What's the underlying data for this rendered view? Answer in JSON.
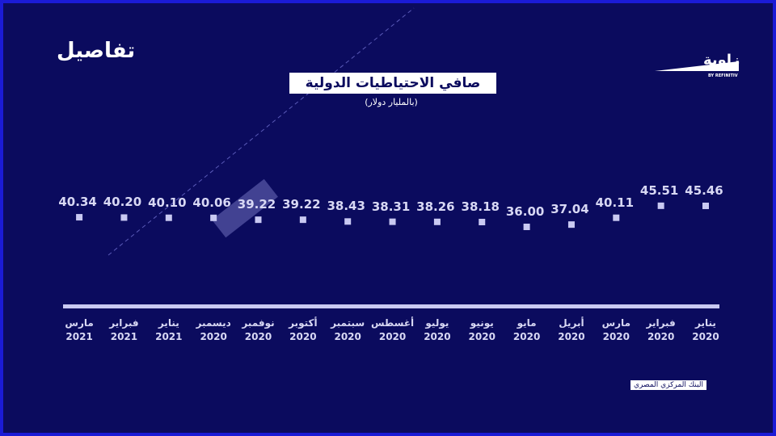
{
  "header": {
    "title": "تفاصيل",
    "logo": "زاوية",
    "logo_sub": "BY REFINITIV"
  },
  "chart_data": {
    "type": "line-markers",
    "title": "صافي الاحتياطيات الدولية",
    "subtitle": "(بالمليار دولار)",
    "categories": [
      "يناير\n2020",
      "فبراير\n2020",
      "مارس\n2020",
      "أبريل\n2020",
      "مايو\n2020",
      "يونيو\n2020",
      "يوليو\n2020",
      "أغسطس\n2020",
      "سبتمبر\n2020",
      "أكتوبر\n2020",
      "نوفمبر\n2020",
      "ديسمبر\n2020",
      "يناير\n2021",
      "فبراير\n2021",
      "مارس\n2021"
    ],
    "values": [
      45.46,
      45.51,
      40.11,
      37.04,
      36.0,
      38.18,
      38.26,
      38.31,
      38.43,
      39.22,
      39.22,
      40.06,
      40.1,
      40.2,
      40.34
    ],
    "value_labels": [
      "45.46",
      "45.51",
      "40.11",
      "37.04",
      "36.00",
      "38.18",
      "38.26",
      "38.31",
      "38.43",
      "39.22",
      "39.22",
      "40.06",
      "40.10",
      "40.20",
      "40.34"
    ],
    "color": "#c9c9f2",
    "ylim": [
      0,
      100
    ],
    "source": "البنك المركزي المصري"
  }
}
